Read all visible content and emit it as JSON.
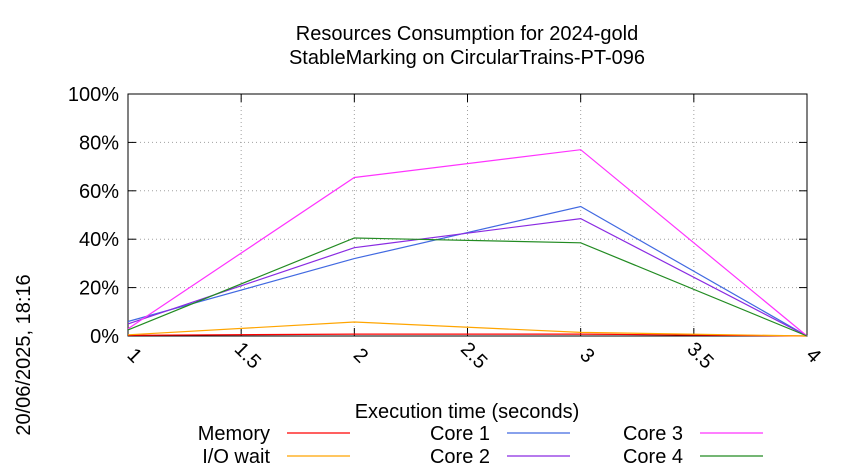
{
  "chart_data": {
    "type": "line",
    "title": "Resources Consumption for 2024-gold",
    "subtitle": "StableMarking on CircularTrains-PT-096",
    "xlabel": "Execution time (seconds)",
    "ylabel": "",
    "side_label": "20/06/2025, 18:16",
    "xlim": [
      1,
      4
    ],
    "ylim": [
      0,
      100
    ],
    "x_ticks": [
      "1",
      "1.5",
      "2",
      "2.5",
      "3",
      "3.5",
      "4"
    ],
    "y_ticks": [
      "0%",
      "20%",
      "40%",
      "60%",
      "80%",
      "100%"
    ],
    "grid": true,
    "legend_position": "bottom",
    "x": [
      1,
      2,
      3,
      4
    ],
    "series": [
      {
        "name": "Memory",
        "color": "#ff0000",
        "values": [
          0.3,
          0.8,
          0.8,
          0
        ]
      },
      {
        "name": "I/O wait",
        "color": "#ffa500",
        "values": [
          0.5,
          5.8,
          1.5,
          0
        ]
      },
      {
        "name": "Core 1",
        "color": "#4169e1",
        "values": [
          6,
          32,
          53.5,
          0
        ]
      },
      {
        "name": "Core 2",
        "color": "#8a2be2",
        "values": [
          5,
          36.5,
          48.5,
          0
        ]
      },
      {
        "name": "Core 3",
        "color": "#ff33ff",
        "values": [
          3,
          65.5,
          77,
          0
        ]
      },
      {
        "name": "Core 4",
        "color": "#228b22",
        "values": [
          2.5,
          40.5,
          38.5,
          0
        ]
      }
    ]
  }
}
